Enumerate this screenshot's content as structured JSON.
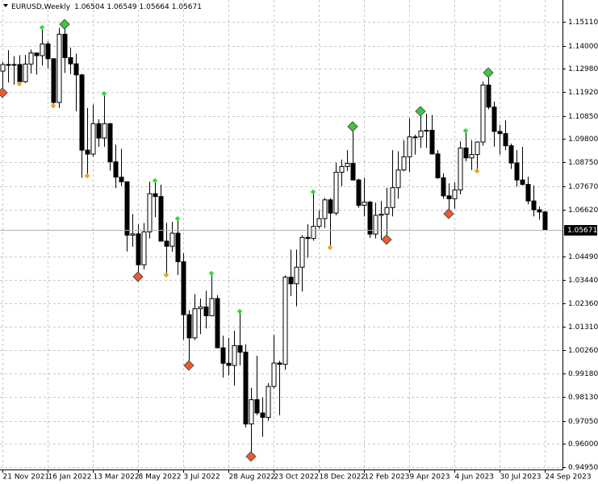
{
  "chart_data": {
    "type": "candlestick",
    "title": "EURUSD,Weekly",
    "categories": [
      "21 Nov 2021",
      null,
      null,
      null,
      null,
      null,
      null,
      null,
      "16 Jan 2022",
      null,
      null,
      null,
      null,
      null,
      null,
      null,
      "13 Mar 2022",
      null,
      null,
      null,
      null,
      null,
      null,
      null,
      "8 May 2022",
      null,
      null,
      null,
      null,
      null,
      null,
      null,
      "3 Jul 2022",
      null,
      null,
      null,
      null,
      null,
      null,
      null,
      "28 Aug 2022",
      null,
      null,
      null,
      null,
      null,
      null,
      null,
      "23 Oct 2022",
      null,
      null,
      null,
      null,
      null,
      null,
      null,
      "18 Dec 2022",
      null,
      null,
      null,
      null,
      null,
      null,
      null,
      "12 Feb 2023",
      null,
      null,
      null,
      null,
      null,
      null,
      null,
      "9 Apr 2023",
      null,
      null,
      null,
      null,
      null,
      null,
      null,
      "4 Jun 2023",
      null,
      null,
      null,
      null,
      null,
      null,
      null,
      "30 Jul 2023",
      null,
      null,
      null,
      null,
      null,
      null,
      null,
      "24 Sep 2023"
    ],
    "open": [
      1.1288,
      1.1318,
      1.1315,
      1.1318,
      1.124,
      1.132,
      1.137,
      1.1358,
      1.1411,
      1.1344,
      1.1146,
      1.1455,
      1.1349,
      1.1321,
      1.1271,
      1.093,
      1.0912,
      1.105,
      1.0985,
      1.105,
      1.0877,
      1.0808,
      1.0787,
      1.0545,
      1.0551,
      1.0411,
      1.056,
      1.0733,
      1.072,
      1.0518,
      1.0495,
      1.0554,
      1.0425,
      1.0185,
      1.008,
      1.0212,
      1.022,
      1.018,
      1.0258,
      1.0035,
      0.9965,
      0.9955,
      1.0045,
      1.0015,
      0.969,
      0.98,
      0.974,
      0.972,
      0.986,
      0.9966,
      0.996,
      1.0355,
      1.0325,
      1.04,
      1.0535,
      1.053,
      1.0585,
      1.062,
      1.0705,
      1.0645,
      1.083,
      1.0856,
      1.087,
      1.0795,
      1.068,
      1.0695,
      1.055,
      1.0635,
      1.064,
      1.067,
      1.076,
      1.084,
      1.09,
      1.099,
      1.099,
      1.1017,
      1.102,
      1.0913,
      1.0805,
      1.0723,
      1.071,
      1.075,
      1.094,
      1.0895,
      1.091,
      1.0967,
      1.1225,
      1.1125,
      1.1015,
      1.1005,
      1.095,
      1.0872,
      1.0795,
      1.0775,
      1.07,
      1.066,
      1.06504
    ],
    "high": [
      1.133,
      1.1383,
      1.1355,
      1.136,
      1.1361,
      1.1386,
      1.137,
      1.1483,
      1.1423,
      1.1346,
      1.1483,
      1.1495,
      1.1395,
      1.1367,
      1.1275,
      1.1121,
      1.1137,
      1.107,
      1.1185,
      1.1053,
      1.0955,
      1.0936,
      1.0787,
      1.0641,
      1.0594,
      1.06,
      1.0787,
      1.0787,
      1.0774,
      1.0601,
      1.0606,
      1.0615,
      1.0463,
      1.0205,
      1.0278,
      1.0258,
      1.0293,
      1.0368,
      1.0273,
      1.009,
      1.008,
      1.0113,
      1.0197,
      1.0051,
      0.9854,
      0.9999,
      0.981,
      0.9875,
      1.0093,
      0.9976,
      1.0363,
      1.048,
      1.048,
      1.0545,
      1.0595,
      1.0736,
      1.0658,
      1.0714,
      1.0713,
      1.0874,
      1.0887,
      1.093,
      1.1033,
      1.0801,
      1.0805,
      1.07,
      1.0692,
      1.07,
      1.076,
      1.093,
      1.0925,
      1.0975,
      1.1075,
      1.1,
      1.1095,
      1.1095,
      1.109,
      1.093,
      1.0825,
      1.078,
      1.0785,
      1.097,
      1.101,
      1.0975,
      1.097,
      1.124,
      1.1275,
      1.115,
      1.1045,
      1.1065,
      1.096,
      1.093,
      1.0945,
      1.081,
      1.077,
      1.0675,
      1.06549
    ],
    "low": [
      1.1186,
      1.1236,
      1.1227,
      1.1222,
      1.1235,
      1.1277,
      1.1272,
      1.1313,
      1.1301,
      1.1121,
      1.1121,
      1.128,
      1.1275,
      1.1106,
      1.0805,
      1.0806,
      1.09,
      1.0945,
      1.0945,
      1.0837,
      1.0758,
      1.0768,
      1.0471,
      1.0492,
      1.035,
      1.0389,
      1.053,
      1.0627,
      1.0516,
      1.0359,
      1.047,
      1.0365,
      1.0071,
      0.9952,
      1.007,
      1.0097,
      1.0123,
      1.018,
      1.0035,
      0.99,
      0.991,
      0.9864,
      0.9955,
      0.9675,
      0.9535,
      0.973,
      0.9632,
      0.9705,
      0.985,
      0.973,
      0.9935,
      1.027,
      1.0223,
      1.029,
      1.0443,
      1.052,
      1.0575,
      1.0577,
      1.0482,
      1.0635,
      1.0766,
      1.0835,
      1.0795,
      1.0669,
      1.063,
      1.0533,
      1.053,
      1.0524,
      1.0515,
      1.063,
      1.071,
      1.0834,
      1.083,
      1.091,
      1.094,
      1.094,
      1.091,
      1.08,
      1.071,
      1.0635,
      1.0665,
      1.073,
      1.088,
      1.084,
      1.0833,
      1.095,
      1.1115,
      1.0945,
      1.091,
      1.093,
      1.0845,
      1.0765,
      1.077,
      1.0685,
      1.063,
      1.0615,
      1.05664
    ],
    "close": [
      1.1318,
      1.1315,
      1.1318,
      1.124,
      1.132,
      1.137,
      1.1358,
      1.1411,
      1.1344,
      1.1146,
      1.1455,
      1.1349,
      1.1321,
      1.1271,
      1.093,
      1.0912,
      1.105,
      1.0985,
      1.105,
      1.0877,
      1.0808,
      1.0787,
      1.0545,
      1.0551,
      1.0411,
      1.056,
      1.0733,
      1.072,
      1.0518,
      1.0495,
      1.0554,
      1.0425,
      1.0185,
      1.008,
      1.0212,
      1.022,
      1.018,
      1.0258,
      1.0035,
      0.9965,
      0.9955,
      1.0045,
      1.0015,
      0.969,
      0.98,
      0.974,
      0.972,
      0.986,
      0.9966,
      0.996,
      1.0355,
      1.0325,
      1.04,
      1.0535,
      1.053,
      1.0585,
      1.062,
      1.0705,
      1.0645,
      1.083,
      1.0856,
      1.087,
      1.0795,
      1.068,
      1.0695,
      1.055,
      1.0635,
      1.064,
      1.067,
      1.076,
      1.084,
      1.09,
      1.099,
      1.099,
      1.1017,
      1.102,
      1.0913,
      1.0805,
      1.0723,
      1.071,
      1.075,
      1.094,
      1.0895,
      1.091,
      1.0967,
      1.1225,
      1.1125,
      1.1015,
      1.1005,
      1.095,
      1.0872,
      1.0795,
      1.0775,
      1.07,
      1.066,
      1.065,
      1.05671
    ],
    "up_color": "#ffffff",
    "down_color": "#000000",
    "markers": [
      {
        "shape": "diamond",
        "size": "large",
        "color": "#3cc83c",
        "values": [
          null,
          null,
          null,
          null,
          null,
          null,
          null,
          null,
          null,
          null,
          null,
          1.15,
          null,
          null,
          null,
          null,
          null,
          null,
          null,
          null,
          null,
          null,
          null,
          null,
          null,
          null,
          null,
          null,
          null,
          null,
          null,
          null,
          null,
          null,
          null,
          null,
          null,
          null,
          null,
          null,
          null,
          null,
          null,
          null,
          null,
          null,
          null,
          null,
          null,
          null,
          null,
          null,
          null,
          null,
          null,
          null,
          null,
          null,
          null,
          null,
          null,
          null,
          1.1037,
          null,
          null,
          null,
          null,
          null,
          null,
          null,
          null,
          null,
          null,
          null,
          1.1106,
          null,
          null,
          null,
          null,
          null,
          null,
          null,
          null,
          null,
          null,
          null,
          1.1281,
          null,
          null,
          null,
          null,
          null,
          null,
          null,
          null,
          null,
          null
        ]
      },
      {
        "shape": "diamond",
        "size": "large",
        "color": "#ee5a2a",
        "values": [
          1.119,
          null,
          null,
          null,
          null,
          null,
          null,
          null,
          null,
          null,
          null,
          null,
          null,
          null,
          null,
          null,
          null,
          null,
          null,
          null,
          null,
          null,
          null,
          null,
          1.0357,
          null,
          null,
          null,
          null,
          null,
          null,
          null,
          null,
          0.9955,
          null,
          null,
          null,
          null,
          null,
          null,
          null,
          null,
          null,
          null,
          0.9543,
          null,
          null,
          null,
          null,
          null,
          null,
          null,
          null,
          null,
          null,
          null,
          null,
          null,
          null,
          null,
          null,
          null,
          null,
          null,
          null,
          null,
          null,
          null,
          1.0525,
          null,
          null,
          null,
          null,
          null,
          null,
          null,
          null,
          null,
          null,
          1.0642,
          null,
          null,
          null,
          null,
          null,
          null,
          null,
          null,
          null,
          null,
          null,
          null,
          null,
          null,
          null,
          null,
          null
        ]
      },
      {
        "shape": "diamond",
        "size": "small",
        "color": "#33dd33",
        "values": [
          null,
          null,
          null,
          null,
          null,
          null,
          null,
          1.1486,
          null,
          null,
          null,
          null,
          null,
          null,
          null,
          null,
          null,
          null,
          1.1186,
          null,
          null,
          null,
          null,
          null,
          null,
          null,
          null,
          1.0792,
          null,
          null,
          null,
          1.062,
          null,
          null,
          null,
          null,
          null,
          1.0372,
          null,
          null,
          null,
          null,
          1.02,
          null,
          null,
          null,
          null,
          null,
          null,
          null,
          null,
          null,
          null,
          null,
          null,
          1.0741,
          null,
          null,
          null,
          null,
          null,
          null,
          null,
          null,
          null,
          null,
          null,
          null,
          null,
          null,
          null,
          null,
          null,
          null,
          null,
          null,
          null,
          null,
          null,
          null,
          null,
          null,
          1.1018,
          null,
          null,
          null,
          null,
          null,
          null,
          null,
          null,
          null,
          null,
          null,
          null,
          null,
          null
        ]
      },
      {
        "shape": "diamond",
        "size": "small",
        "color": "#f0a020",
        "values": [
          null,
          null,
          null,
          1.123,
          null,
          null,
          null,
          null,
          null,
          1.1132,
          null,
          null,
          null,
          null,
          null,
          1.0814,
          null,
          null,
          null,
          null,
          null,
          null,
          null,
          null,
          null,
          null,
          null,
          null,
          null,
          1.0365,
          null,
          null,
          null,
          null,
          null,
          null,
          null,
          null,
          null,
          null,
          null,
          null,
          null,
          null,
          null,
          null,
          null,
          null,
          null,
          null,
          null,
          null,
          null,
          null,
          null,
          null,
          null,
          null,
          1.0489,
          null,
          null,
          null,
          null,
          null,
          null,
          null,
          null,
          null,
          null,
          null,
          null,
          null,
          null,
          null,
          null,
          null,
          null,
          null,
          null,
          null,
          null,
          null,
          null,
          null,
          1.0836,
          null,
          null,
          null,
          null,
          null,
          null,
          null,
          null,
          null,
          null,
          null,
          null
        ]
      }
    ],
    "ylim": [
      0.9484,
      1.161
    ],
    "yticks": [
      {
        "value": 1.1511,
        "label": "1.15110"
      },
      {
        "value": 1.14,
        "label": "1.14000"
      },
      {
        "value": 1.1298,
        "label": "1.12980"
      },
      {
        "value": 1.1192,
        "label": "1.11920"
      },
      {
        "value": 1.1085,
        "label": "1.10850"
      },
      {
        "value": 1.098,
        "label": "1.09800"
      },
      {
        "value": 1.0875,
        "label": "1.08750"
      },
      {
        "value": 1.0767,
        "label": "1.07670"
      },
      {
        "value": 1.0662,
        "label": "1.06620"
      },
      {
        "value": 1.0449,
        "label": "1.04490"
      },
      {
        "value": 1.0344,
        "label": "1.03440"
      },
      {
        "value": 1.0236,
        "label": "1.02360"
      },
      {
        "value": 1.0131,
        "label": "1.01310"
      },
      {
        "value": 1.0026,
        "label": "1.00260"
      },
      {
        "value": 0.9918,
        "label": "0.99180"
      },
      {
        "value": 0.9813,
        "label": "0.98130"
      },
      {
        "value": 0.9705,
        "label": "0.97050"
      },
      {
        "value": 0.96,
        "label": "0.96000"
      },
      {
        "value": 0.9495,
        "label": "0.94950"
      }
    ],
    "grid": true
  }
}
